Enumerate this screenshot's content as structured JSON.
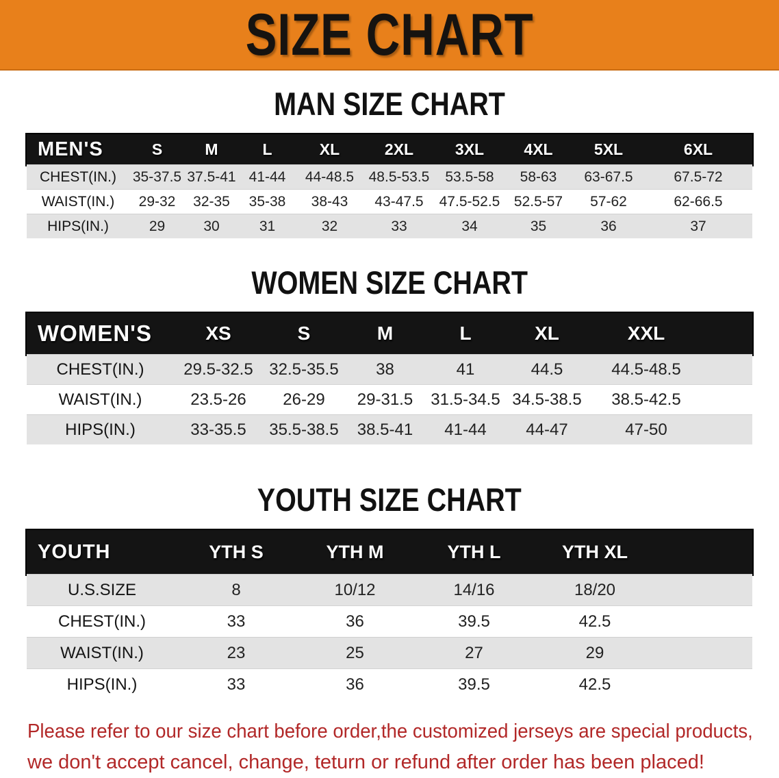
{
  "banner": {
    "title": "SIZE CHART"
  },
  "colors": {
    "accent": "#E8801B",
    "header-bar": "#141414",
    "row-gray": "#E3E3E3",
    "note-red": "#B22828"
  },
  "sections": [
    {
      "heading": "MAN SIZE CHART",
      "table": {
        "header_label": "MEN'S",
        "columns": [
          "S",
          "M",
          "L",
          "XL",
          "2XL",
          "3XL",
          "4XL",
          "5XL",
          "6XL"
        ],
        "rows": [
          {
            "label": "CHEST(IN.)",
            "values": [
              "35-37.5",
              "37.5-41",
              "41-44",
              "44-48.5",
              "48.5-53.5",
              "53.5-58",
              "58-63",
              "63-67.5",
              "67.5-72"
            ]
          },
          {
            "label": "WAIST(IN.)",
            "values": [
              "29-32",
              "32-35",
              "35-38",
              "38-43",
              "43-47.5",
              "47.5-52.5",
              "52.5-57",
              "57-62",
              "62-66.5"
            ]
          },
          {
            "label": "HIPS(IN.)",
            "values": [
              "29",
              "30",
              "31",
              "32",
              "33",
              "34",
              "35",
              "36",
              "37"
            ]
          }
        ]
      }
    },
    {
      "heading": "WOMEN SIZE CHART",
      "table": {
        "header_label": "WOMEN'S",
        "columns": [
          "XS",
          "S",
          "M",
          "L",
          "XL",
          "XXL"
        ],
        "rows": [
          {
            "label": "CHEST(IN.)",
            "values": [
              "29.5-32.5",
              "32.5-35.5",
              "38",
              "41",
              "44.5",
              "44.5-48.5"
            ]
          },
          {
            "label": "WAIST(IN.)",
            "values": [
              "23.5-26",
              "26-29",
              "29-31.5",
              "31.5-34.5",
              "34.5-38.5",
              "38.5-42.5"
            ]
          },
          {
            "label": "HIPS(IN.)",
            "values": [
              "33-35.5",
              "35.5-38.5",
              "38.5-41",
              "41-44",
              "44-47",
              "47-50"
            ]
          }
        ]
      }
    },
    {
      "heading": "YOUTH SIZE CHART",
      "table": {
        "header_label": "YOUTH",
        "columns": [
          "YTH S",
          "YTH M",
          "YTH L",
          "YTH XL"
        ],
        "rows": [
          {
            "label": "U.S.SIZE",
            "values": [
              "8",
              "10/12",
              "14/16",
              "18/20"
            ]
          },
          {
            "label": "CHEST(IN.)",
            "values": [
              "33",
              "36",
              "39.5",
              "42.5"
            ]
          },
          {
            "label": "WAIST(IN.)",
            "values": [
              "23",
              "25",
              "27",
              "29"
            ]
          },
          {
            "label": "HIPS(IN.)",
            "values": [
              "33",
              "36",
              "39.5",
              "42.5"
            ]
          }
        ]
      }
    }
  ],
  "note": {
    "lines": [
      "Please refer to our size chart before order,the customized jerseys are special products,",
      "we don't accept cancel, change, teturn or refund after order has been placed!"
    ]
  }
}
